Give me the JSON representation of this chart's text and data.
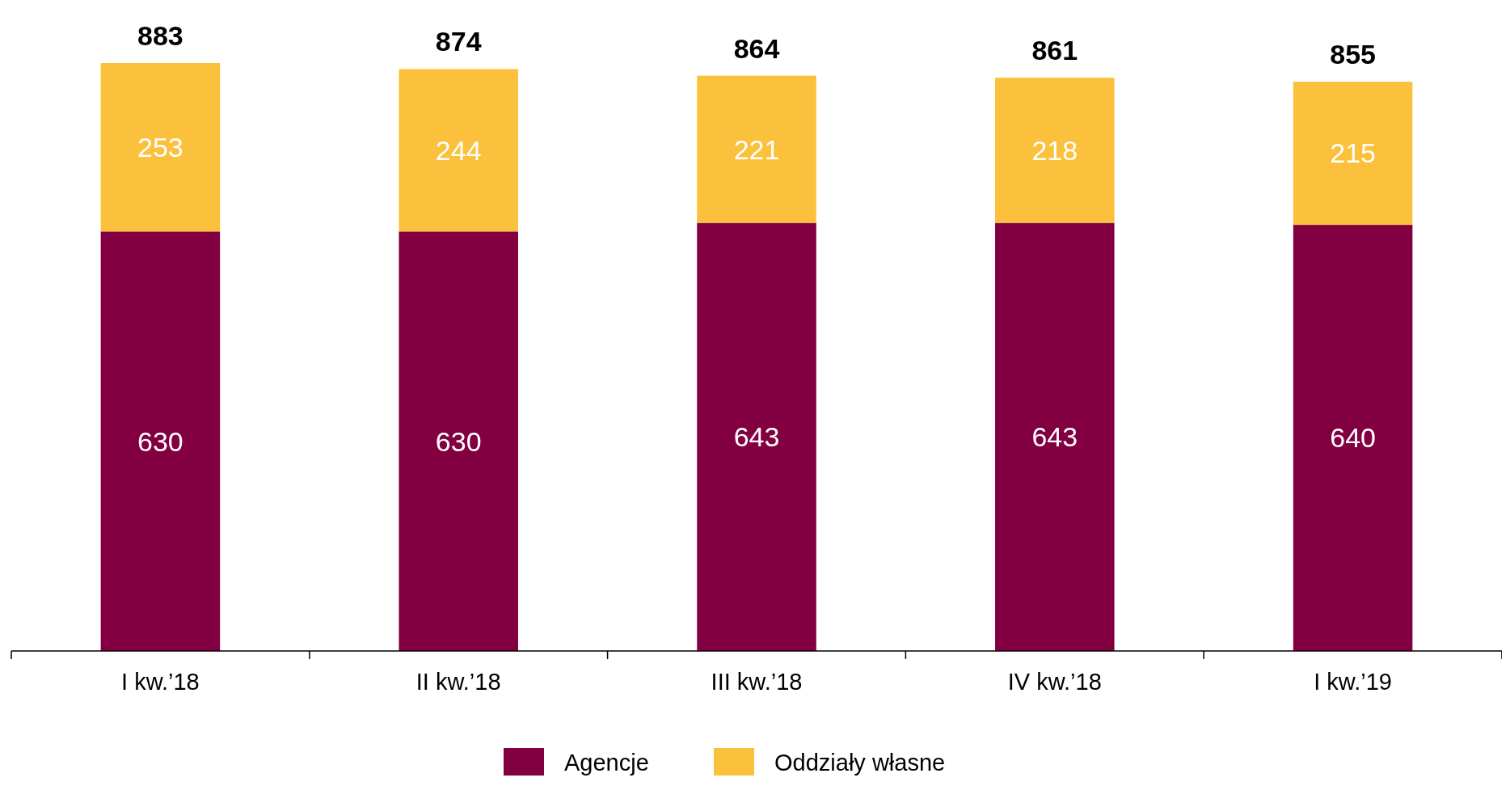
{
  "chart_data": {
    "type": "bar",
    "stacked": true,
    "categories": [
      "I kw.’18",
      "II kw.’18",
      "III kw.’18",
      "IV kw.’18",
      "I kw.’19"
    ],
    "series": [
      {
        "name": "Agencje",
        "color": "#820041",
        "values": [
          630,
          630,
          643,
          643,
          640
        ]
      },
      {
        "name": "Oddziały własne",
        "color": "#fcc13c",
        "values": [
          253,
          244,
          221,
          218,
          215
        ]
      }
    ],
    "data_labels": true,
    "totals": [
      "883",
      "874",
      "864",
      "861",
      "855"
    ],
    "legend": "bottom",
    "grid": false
  }
}
